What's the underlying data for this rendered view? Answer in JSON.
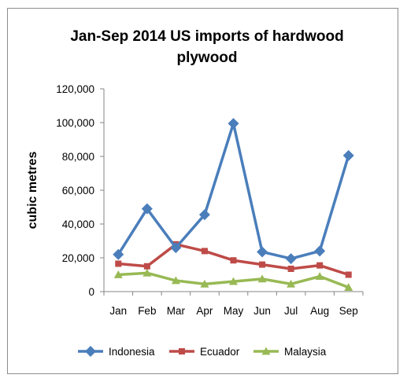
{
  "chart_data": {
    "type": "line",
    "title_lines": [
      "Jan-Sep 2014 US imports of hardwood",
      "plywood"
    ],
    "ylabel": "cubic metres",
    "xlabel": "",
    "categories": [
      "Jan",
      "Feb",
      "Mar",
      "Apr",
      "May",
      "Jun",
      "Jul",
      "Aug",
      "Sep"
    ],
    "ylim": [
      0,
      120000
    ],
    "y_ticks": [
      0,
      20000,
      40000,
      60000,
      80000,
      100000,
      120000
    ],
    "y_tick_labels": [
      "0",
      "20,000",
      "40,000",
      "60,000",
      "80,000",
      "100,000",
      "120,000"
    ],
    "grid": false,
    "legend_position": "bottom",
    "series": [
      {
        "name": "Indonesia",
        "color": "#4a7ebb",
        "marker": "diamond",
        "values": [
          22000,
          49000,
          26000,
          45500,
          99500,
          23500,
          19500,
          24000,
          80500
        ]
      },
      {
        "name": "Ecuador",
        "color": "#be4b48",
        "marker": "square",
        "values": [
          16500,
          15000,
          28000,
          24000,
          18500,
          16000,
          13500,
          15500,
          10000
        ]
      },
      {
        "name": "Malaysia",
        "color": "#98b954",
        "marker": "triangle",
        "values": [
          10000,
          11000,
          6500,
          4500,
          6000,
          7500,
          4500,
          9000,
          2500
        ]
      }
    ]
  }
}
